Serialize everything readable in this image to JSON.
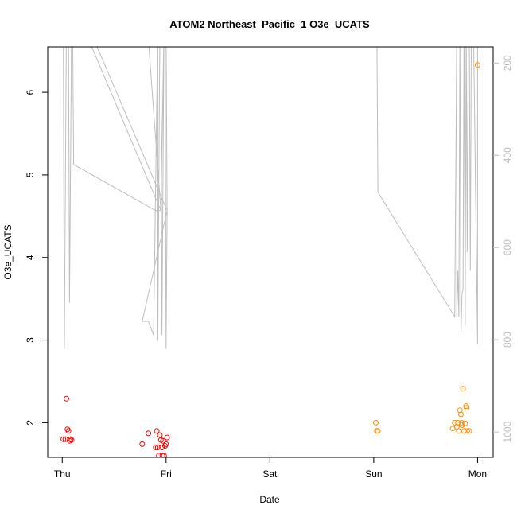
{
  "chart_data": {
    "type": "scatter",
    "title": "ATOM2 Northeast_Pacific_1 O3e_UCATS",
    "xlabel": "Date",
    "ylabel": "O3e_UCATS",
    "x_ticks": [
      {
        "day": 0,
        "label": "Thu"
      },
      {
        "day": 1,
        "label": "Fri"
      },
      {
        "day": 2,
        "label": "Sat"
      },
      {
        "day": 3,
        "label": "Sun"
      },
      {
        "day": 4,
        "label": "Mon"
      }
    ],
    "xlim": [
      -0.14,
      4.15
    ],
    "ylim": [
      1.58,
      6.55
    ],
    "y_ticks": [
      2,
      3,
      4,
      5,
      6
    ],
    "y2_ticks": [
      200,
      400,
      600,
      800,
      1000
    ],
    "y2lim": [
      1055,
      165
    ],
    "y2_reversed": true,
    "grid": false,
    "colors": {
      "early": "#ff0000",
      "late": "#ff8c00",
      "line": "#bebebe",
      "axis": "#000000",
      "right_axis": "#bebebe"
    },
    "series": [
      {
        "color": "#ff0000",
        "points": [
          [
            0.01,
            1.8
          ],
          [
            0.03,
            1.8
          ],
          [
            0.04,
            2.29
          ],
          [
            0.05,
            1.92
          ],
          [
            0.06,
            1.9
          ],
          [
            0.07,
            1.78
          ],
          [
            0.08,
            1.8
          ],
          [
            0.09,
            1.79
          ],
          [
            0.77,
            1.74
          ],
          [
            0.83,
            1.87
          ],
          [
            0.9,
            1.7
          ],
          [
            0.91,
            1.9
          ],
          [
            0.92,
            1.7
          ],
          [
            0.93,
            1.6
          ],
          [
            0.94,
            1.85
          ],
          [
            0.95,
            1.79
          ],
          [
            0.96,
            1.7
          ],
          [
            0.965,
            1.6
          ],
          [
            0.97,
            1.78
          ],
          [
            0.98,
            1.6
          ],
          [
            0.99,
            1.72
          ],
          [
            1.0,
            1.74
          ],
          [
            1.01,
            1.82
          ]
        ]
      },
      {
        "color": "#ff8c00",
        "points": [
          [
            3.02,
            2.0
          ],
          [
            3.03,
            1.9
          ],
          [
            3.04,
            1.9
          ],
          [
            3.76,
            1.93
          ],
          [
            3.78,
            2.0
          ],
          [
            3.8,
            1.95
          ],
          [
            3.81,
            2.0
          ],
          [
            3.82,
            1.9
          ],
          [
            3.83,
            2.15
          ],
          [
            3.84,
            2.1
          ],
          [
            3.845,
            2.0
          ],
          [
            3.85,
            1.97
          ],
          [
            3.86,
            2.41
          ],
          [
            3.87,
            1.9
          ],
          [
            3.88,
            1.99
          ],
          [
            3.89,
            2.2
          ],
          [
            3.895,
            2.18
          ],
          [
            3.9,
            1.9
          ],
          [
            3.92,
            1.9
          ],
          [
            4.0,
            6.33
          ]
        ]
      }
    ],
    "pressure_line": {
      "color": "#bebebe",
      "points": [
        [
          0.0,
          120
        ],
        [
          0.01,
          120
        ],
        [
          0.02,
          820
        ],
        [
          0.04,
          120
        ],
        [
          0.06,
          120
        ],
        [
          0.07,
          720
        ],
        [
          0.09,
          120
        ],
        [
          0.1,
          120
        ],
        [
          0.11,
          420
        ],
        [
          0.9,
          520
        ],
        [
          0.95,
          520
        ],
        [
          0.98,
          120
        ],
        [
          1.0,
          120
        ],
        [
          1.01,
          520
        ],
        [
          1.01,
          520
        ],
        [
          0.25,
          120
        ],
        [
          0.74,
          120
        ],
        [
          0.84,
          120
        ],
        [
          0.2,
          120
        ],
        [
          0.95,
          520
        ],
        [
          0.82,
          120
        ],
        [
          0.72,
          120
        ],
        [
          0.24,
          120
        ],
        [
          0.92,
          120
        ],
        [
          0.92,
          802
        ],
        [
          0.94,
          120
        ],
        [
          0.95,
          120
        ],
        [
          0.96,
          790
        ],
        [
          0.98,
          120
        ],
        [
          0.99,
          120
        ],
        [
          1.0,
          820
        ],
        [
          1.01,
          520
        ],
        [
          0.77,
          760
        ],
        [
          0.83,
          760
        ],
        [
          0.88,
          790
        ],
        [
          0.92,
          120
        ],
        [
          3.02,
          120
        ],
        [
          3.03,
          120
        ],
        [
          3.04,
          480
        ],
        [
          3.78,
          750
        ],
        [
          3.8,
          120
        ],
        [
          3.8,
          750
        ],
        [
          3.81,
          650
        ],
        [
          3.82,
          750
        ],
        [
          3.83,
          120
        ],
        [
          3.84,
          790
        ],
        [
          3.85,
          700
        ],
        [
          3.86,
          690
        ],
        [
          3.87,
          120
        ],
        [
          3.88,
          770
        ],
        [
          3.89,
          120
        ],
        [
          3.9,
          610
        ],
        [
          3.91,
          120
        ],
        [
          3.92,
          120
        ],
        [
          3.93,
          650
        ],
        [
          3.94,
          120
        ],
        [
          3.95,
          120
        ],
        [
          3.96,
          120
        ],
        [
          4.0,
          810
        ],
        [
          4.0,
          120
        ]
      ]
    }
  }
}
